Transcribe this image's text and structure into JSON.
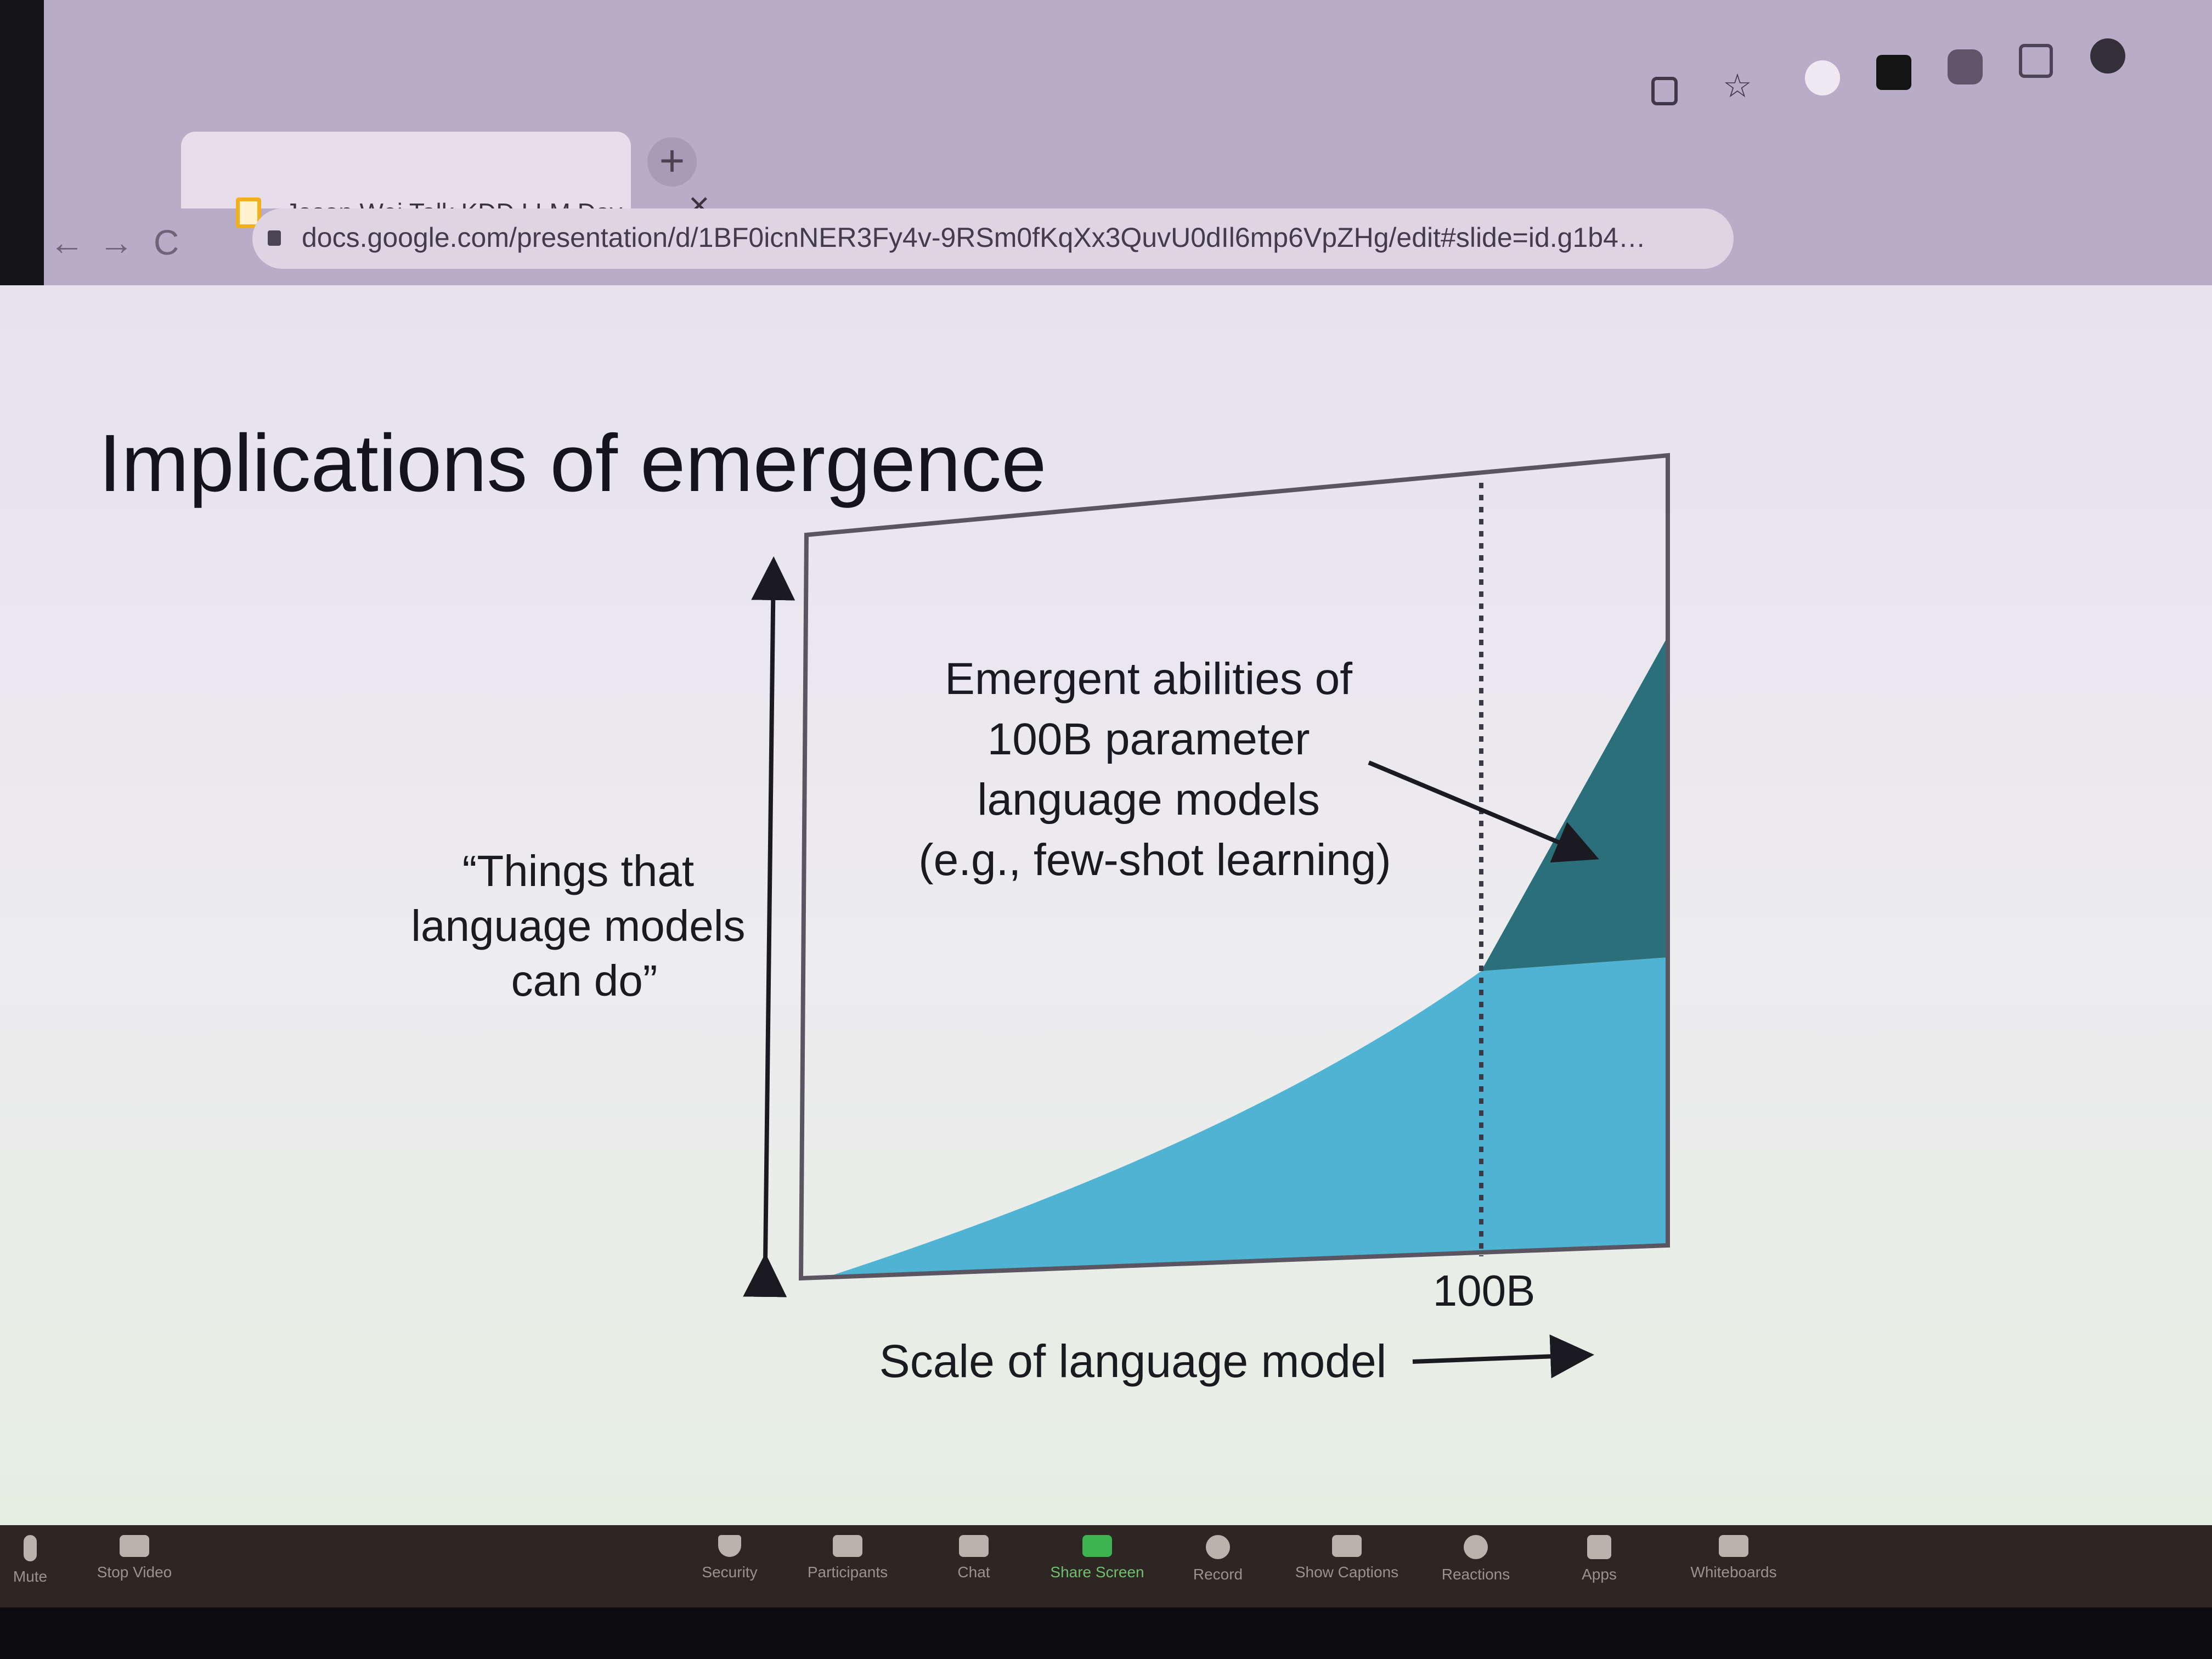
{
  "browser": {
    "tab_title": "Jason Wei Talk KDD LLM Day",
    "tab_close": "×",
    "new_tab": "+",
    "back": "←",
    "forward": "→",
    "reload": "C",
    "url": "docs.google.com/presentation/d/1BF0icnNER3Fy4v-9RSm0fKqXx3QuvU0dIl6mp6VpZHg/edit#slide=id.g1b4…",
    "icons": [
      "share-icon",
      "star-icon",
      "g-extension-icon",
      "play-extension-icon",
      "puzzle-extension-icon",
      "sidebar-icon",
      "profile-icon"
    ]
  },
  "slide": {
    "title": "Implications of emergence",
    "y_label_lines": [
      "“Things that",
      "language models",
      "can do”"
    ],
    "annotation_lines": [
      "Emergent abilities of",
      "100B parameter",
      "language models",
      "(e.g., few-shot learning)"
    ],
    "threshold_label": "100B",
    "x_label": "Scale of language model"
  },
  "chart_data": {
    "type": "area",
    "threshold_label": "100B",
    "x_label": "Scale of language model",
    "y_label": "“Things that language models can do”",
    "annotation": "Emergent abilities of 100B parameter language models (e.g., few-shot learning)",
    "colors": {
      "base": "#4fb3d3",
      "emergent": "#2b6f7a",
      "frame": "#5a5560"
    }
  },
  "zoom_toolbar": {
    "items": [
      {
        "label": "Mute",
        "icon": "microphone-icon"
      },
      {
        "label": "Stop Video",
        "icon": "video-camera-icon"
      },
      {
        "label": "Security",
        "icon": "shield-icon"
      },
      {
        "label": "Participants",
        "icon": "participants-icon"
      },
      {
        "label": "Chat",
        "icon": "chat-icon"
      },
      {
        "label": "Share Screen",
        "icon": "share-screen-icon"
      },
      {
        "label": "Record",
        "icon": "record-icon"
      },
      {
        "label": "Show Captions",
        "icon": "captions-icon"
      },
      {
        "label": "Reactions",
        "icon": "reactions-icon"
      },
      {
        "label": "Apps",
        "icon": "apps-icon"
      },
      {
        "label": "Whiteboards",
        "icon": "whiteboard-icon"
      }
    ]
  }
}
